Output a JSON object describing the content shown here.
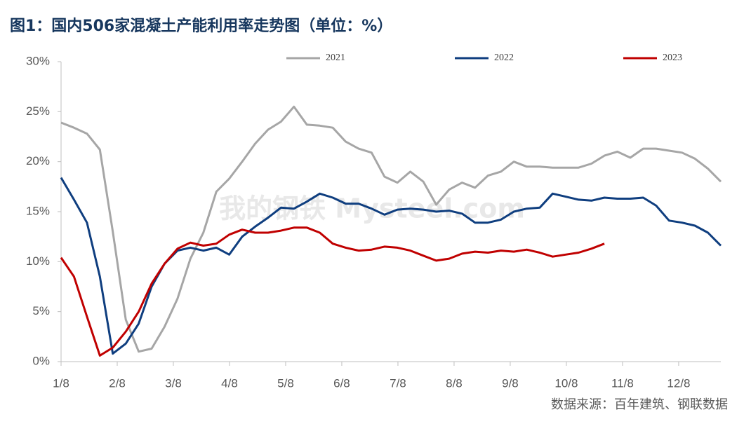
{
  "chart_data": {
    "type": "line",
    "title": "图1：国内506家混凝土产能利用率走势图（单位：%）",
    "source": "数据来源：百年建筑、钢联数据",
    "watermark": "我的钢铁 Mysteel.com",
    "x": [
      0,
      1,
      2,
      3,
      4,
      5,
      6,
      7,
      8,
      9,
      10,
      11,
      12,
      13,
      14,
      15,
      16,
      17,
      18,
      19,
      20,
      21,
      22,
      23,
      24,
      25,
      26,
      27,
      28,
      29,
      30,
      31,
      32,
      33,
      34,
      35,
      36,
      37,
      38,
      39,
      40,
      41,
      42,
      43,
      44,
      45,
      46,
      47,
      48,
      49,
      50,
      51
    ],
    "xlim": [
      0,
      51
    ],
    "xticks": [
      {
        "value": 0,
        "label": "1/8"
      },
      {
        "value": 4.34,
        "label": "2/8"
      },
      {
        "value": 8.68,
        "label": "3/8"
      },
      {
        "value": 13.02,
        "label": "4/8"
      },
      {
        "value": 17.36,
        "label": "5/8"
      },
      {
        "value": 21.7,
        "label": "6/8"
      },
      {
        "value": 26.04,
        "label": "7/8"
      },
      {
        "value": 30.38,
        "label": "8/8"
      },
      {
        "value": 34.72,
        "label": "9/8"
      },
      {
        "value": 39.06,
        "label": "10/8"
      },
      {
        "value": 43.4,
        "label": "11/8"
      },
      {
        "value": 47.74,
        "label": "12/8"
      }
    ],
    "ylim": [
      0,
      30
    ],
    "yticks": [
      {
        "value": 0,
        "label": "0%"
      },
      {
        "value": 5,
        "label": "5%"
      },
      {
        "value": 10,
        "label": "10%"
      },
      {
        "value": 15,
        "label": "15%"
      },
      {
        "value": 20,
        "label": "20%"
      },
      {
        "value": 25,
        "label": "25%"
      },
      {
        "value": 30,
        "label": "30%"
      }
    ],
    "grid": false,
    "legend": "top",
    "series": [
      {
        "name": "2021",
        "color": "#a6a6a6",
        "values": [
          23.9,
          23.4,
          22.8,
          21.2,
          13.0,
          4.2,
          1.0,
          1.3,
          3.5,
          6.3,
          10.3,
          12.9,
          17.0,
          18.3,
          20.0,
          21.8,
          23.2,
          24.0,
          25.5,
          23.7,
          23.6,
          23.4,
          22.0,
          21.3,
          20.9,
          18.5,
          17.9,
          19.0,
          18.0,
          15.7,
          17.2,
          17.9,
          17.4,
          18.6,
          19.0,
          20.0,
          19.5,
          19.5,
          19.4,
          19.4,
          19.4,
          19.8,
          20.6,
          21.0,
          20.4,
          21.3,
          21.3,
          21.1,
          20.9,
          20.3,
          19.3,
          18.0
        ]
      },
      {
        "name": "2022",
        "color": "#0f3e7f",
        "values": [
          18.4,
          16.2,
          13.9,
          8.5,
          0.8,
          1.8,
          3.8,
          7.5,
          9.8,
          11.1,
          11.4,
          11.1,
          11.4,
          10.7,
          12.5,
          13.5,
          14.4,
          15.4,
          15.3,
          16.0,
          16.8,
          16.4,
          15.8,
          15.8,
          15.3,
          14.7,
          15.2,
          15.3,
          15.2,
          15.0,
          15.1,
          14.8,
          13.9,
          13.9,
          14.2,
          15.0,
          15.3,
          15.4,
          16.8,
          16.5,
          16.2,
          16.1,
          16.4,
          16.3,
          16.3,
          16.4,
          15.6,
          14.1,
          13.9,
          13.6,
          12.9,
          11.6
        ]
      },
      {
        "name": "2023",
        "color": "#c00000",
        "values": [
          10.4,
          8.5,
          4.5,
          0.6,
          1.4,
          3.0,
          5.0,
          7.8,
          9.8,
          11.3,
          11.9,
          11.6,
          11.8,
          12.7,
          13.2,
          12.9,
          12.9,
          13.1,
          13.4,
          13.4,
          12.9,
          11.8,
          11.4,
          11.1,
          11.2,
          11.5,
          11.4,
          11.1,
          10.6,
          10.1,
          10.3,
          10.8,
          11.0,
          10.9,
          11.1,
          11.0,
          11.2,
          10.9,
          10.5,
          10.7,
          10.9,
          11.3,
          11.8,
          null,
          null,
          null,
          null,
          null,
          null,
          null,
          null,
          null
        ]
      }
    ]
  }
}
